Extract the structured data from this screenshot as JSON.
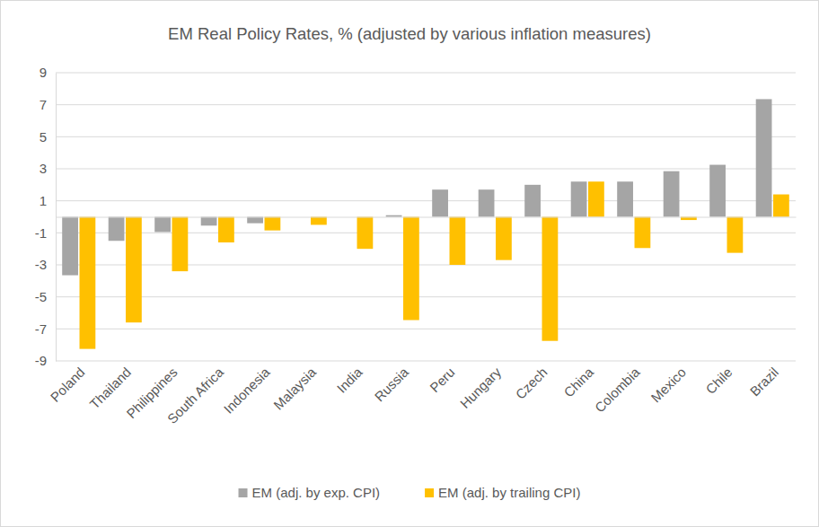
{
  "chart_data": {
    "type": "bar",
    "title": "EM Real Policy Rates, % (adjusted by various inflation measures)",
    "categories": [
      "Poland",
      "Thailand",
      "Philippines",
      "South Africa",
      "Indonesia",
      "Malaysia",
      "India",
      "Russia",
      "Peru",
      "Hungary",
      "Czech",
      "China",
      "Colombia",
      "Mexico",
      "Chile",
      "Brazil"
    ],
    "series": [
      {
        "name": "EM (adj. by exp. CPI)",
        "color": "#a5a5a5",
        "values": [
          -3.65,
          -1.5,
          -0.95,
          -0.55,
          -0.4,
          0,
          0,
          0.1,
          1.7,
          1.7,
          2.0,
          2.2,
          2.2,
          2.85,
          3.25,
          7.35
        ]
      },
      {
        "name": "EM (adj. by trailing CPI)",
        "color": "#ffc000",
        "values": [
          -8.25,
          -6.6,
          -3.4,
          -1.6,
          -0.85,
          -0.5,
          -2.0,
          -6.45,
          -3.0,
          -2.7,
          -7.75,
          2.2,
          -1.95,
          -0.2,
          -2.25,
          1.4
        ]
      }
    ],
    "ylim": [
      -9,
      9
    ],
    "yticks": [
      -9,
      -7,
      -5,
      -3,
      -1,
      1,
      3,
      5,
      7,
      9
    ],
    "grid": true,
    "legend": "bottom"
  }
}
